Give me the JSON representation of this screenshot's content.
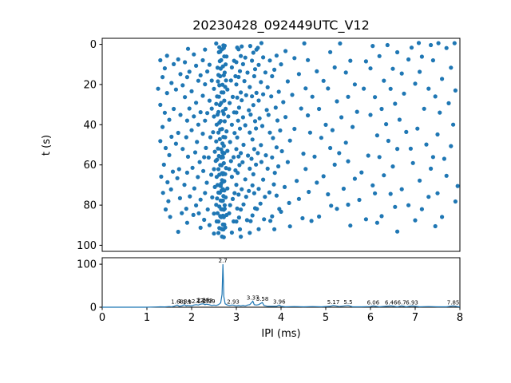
{
  "figure": {
    "background": "#ffffff",
    "accent": "#1f77b4"
  },
  "chart_data": [
    {
      "type": "scatter",
      "title": "20230428_092449UTC_V12",
      "xlabel": "",
      "ylabel": "t (s)",
      "xlim": [
        0,
        8
      ],
      "ylim": [
        103,
        -3
      ],
      "y_inverted": true,
      "grid": false,
      "legend": "none",
      "yticks": [
        0,
        20,
        40,
        60,
        80,
        100
      ],
      "marker_color": "#1f77b4",
      "rows_format": "[t_seconds, [ipi_ms, ...]]",
      "rows": [
        [
          0.5,
          [
            2.55,
            2.62,
            2.71,
            3.02,
            3.31,
            3.56,
            4.52,
            5.32,
            6.38,
            6.92,
            7.08,
            7.52,
            7.88
          ]
        ],
        [
          1.5,
          [
            2.68,
            2.74,
            3.12,
            3.48,
            6.05,
            7.35
          ]
        ],
        [
          3,
          [
            1.92,
            2.3,
            2.64,
            2.72,
            3.05,
            3.45,
            4.1,
            6.6,
            7.7
          ]
        ],
        [
          5,
          [
            1.45,
            2.05,
            2.61,
            2.78,
            3.1,
            3.38,
            3.9,
            5.1,
            6.2,
            7.15
          ]
        ],
        [
          7,
          [
            1.7,
            2.25,
            2.66,
            2.73,
            2.95,
            3.2,
            3.6,
            4.3,
            5.55,
            6.85
          ]
        ],
        [
          9,
          [
            1.3,
            1.85,
            2.4,
            2.63,
            2.76,
            3.0,
            3.35,
            3.75,
            4.6,
            5.9,
            7.4
          ]
        ],
        [
          11,
          [
            1.6,
            2.1,
            2.58,
            2.7,
            2.9,
            3.15,
            3.5,
            4.0,
            5.2,
            6.5,
            7.8
          ]
        ],
        [
          13,
          [
            1.4,
            1.95,
            2.35,
            2.65,
            2.74,
            3.08,
            3.42,
            3.85,
            4.8,
            6.0,
            7.1
          ]
        ],
        [
          15,
          [
            1.75,
            2.2,
            2.6,
            2.72,
            2.98,
            3.25,
            3.65,
            4.4,
            5.45,
            6.7
          ]
        ],
        [
          17,
          [
            1.35,
            1.9,
            2.45,
            2.64,
            2.77,
            3.05,
            3.4,
            3.8,
            4.95,
            6.3,
            7.6
          ]
        ],
        [
          19,
          [
            1.55,
            2.15,
            2.59,
            2.69,
            2.88,
            3.18,
            3.55,
            4.15,
            5.65,
            7.0
          ]
        ],
        [
          21,
          [
            1.25,
            1.8,
            2.3,
            2.62,
            2.75,
            3.0,
            3.3,
            3.7,
            4.55,
            5.85,
            7.3
          ]
        ],
        [
          23,
          [
            1.65,
            2.0,
            2.5,
            2.67,
            2.8,
            3.1,
            3.45,
            3.95,
            5.05,
            6.45,
            7.9
          ]
        ],
        [
          25,
          [
            1.45,
            2.25,
            2.61,
            2.71,
            2.92,
            3.22,
            3.6,
            4.25,
            5.5,
            6.75
          ]
        ],
        [
          27,
          [
            1.85,
            2.4,
            2.57,
            2.73,
            3.02,
            3.35,
            3.78,
            4.7,
            6.1,
            7.45
          ]
        ],
        [
          29,
          [
            1.3,
            2.1,
            2.55,
            2.66,
            2.85,
            3.12,
            3.5,
            4.05,
            5.25,
            6.55,
            7.75
          ]
        ],
        [
          31,
          [
            1.6,
            1.95,
            2.45,
            2.63,
            2.76,
            3.06,
            3.38,
            3.88,
            4.85,
            6.25
          ]
        ],
        [
          33,
          [
            1.4,
            2.2,
            2.6,
            2.7,
            2.95,
            3.28,
            3.68,
            4.45,
            5.7,
            7.2
          ]
        ],
        [
          35,
          [
            1.75,
            2.35,
            2.58,
            2.72,
            3.0,
            3.32,
            3.72,
            4.6,
            6.0,
            7.55
          ]
        ],
        [
          37,
          [
            1.5,
            2.05,
            2.5,
            2.65,
            2.82,
            3.15,
            3.52,
            4.1,
            5.35,
            6.65
          ]
        ],
        [
          39,
          [
            1.9,
            2.3,
            2.62,
            2.74,
            3.04,
            3.42,
            3.92,
            5.0,
            6.35,
            7.85
          ]
        ],
        [
          41,
          [
            1.35,
            2.15,
            2.56,
            2.68,
            2.9,
            3.2,
            3.58,
            4.3,
            5.6,
            7.05
          ]
        ],
        [
          43,
          [
            1.7,
            2.0,
            2.48,
            2.64,
            2.78,
            3.08,
            3.44,
            3.98,
            5.15,
            6.8
          ]
        ],
        [
          45,
          [
            1.55,
            2.25,
            2.6,
            2.71,
            2.96,
            3.3,
            3.75,
            4.65,
            6.15,
            7.5
          ]
        ],
        [
          47,
          [
            1.3,
            1.88,
            2.42,
            2.63,
            2.75,
            3.02,
            3.36,
            3.82,
            4.9,
            6.4
          ]
        ],
        [
          49,
          [
            1.65,
            2.12,
            2.55,
            2.69,
            2.86,
            3.16,
            3.55,
            4.2,
            5.45,
            7.25
          ]
        ],
        [
          51,
          [
            1.42,
            2.32,
            2.59,
            2.72,
            3.0,
            3.4,
            3.9,
            5.1,
            6.6,
            7.8
          ]
        ],
        [
          53,
          [
            1.8,
            2.08,
            2.52,
            2.66,
            2.69,
            2.8,
            3.1,
            3.48,
            4.02,
            5.3,
            6.9
          ]
        ],
        [
          55,
          [
            1.5,
            2.28,
            2.61,
            2.69,
            2.73,
            2.94,
            3.26,
            3.66,
            4.5,
            5.95,
            7.4
          ]
        ],
        [
          57,
          [
            1.92,
            2.38,
            2.57,
            2.7,
            3.05,
            3.34,
            3.8,
            4.75,
            6.2,
            7.65,
            2.66
          ]
        ],
        [
          59,
          [
            1.38,
            2.18,
            2.54,
            2.67,
            2.88,
            3.14,
            3.56,
            4.15,
            5.5,
            6.95,
            2.72
          ]
        ],
        [
          61,
          [
            1.72,
            2.02,
            2.5,
            2.64,
            2.77,
            3.07,
            3.44,
            3.94,
            5.2,
            6.5,
            2.84
          ]
        ],
        [
          63,
          [
            1.58,
            2.26,
            2.6,
            2.71,
            2.98,
            3.3,
            3.7,
            4.55,
            5.8,
            7.35,
            2.68
          ]
        ],
        [
          65,
          [
            1.32,
            1.9,
            2.44,
            2.62,
            2.75,
            3.03,
            3.38,
            3.86,
            4.95,
            6.3,
            7.7,
            2.7
          ]
        ],
        [
          67,
          [
            1.68,
            2.14,
            2.56,
            2.68,
            2.9,
            3.2,
            3.6,
            4.35,
            5.65,
            7.1,
            2.73
          ]
        ],
        [
          69,
          [
            1.46,
            2.34,
            2.58,
            2.72,
            3.0,
            3.36,
            3.84,
            4.8,
            6.05,
            2.66
          ]
        ],
        [
          71,
          [
            1.84,
            2.06,
            2.52,
            2.65,
            2.8,
            3.12,
            3.5,
            4.08,
            5.4,
            6.7,
            7.95,
            2.7
          ]
        ],
        [
          73,
          [
            1.54,
            2.3,
            2.6,
            2.73,
            2.96,
            3.28,
            3.74,
            4.62,
            6.1,
            7.5,
            2.67
          ]
        ],
        [
          75,
          [
            1.36,
            1.96,
            2.46,
            2.63,
            2.76,
            3.05,
            3.4,
            3.9,
            5.05,
            6.45,
            2.71
          ]
        ],
        [
          77,
          [
            1.74,
            2.2,
            2.57,
            2.7,
            2.92,
            3.22,
            3.64,
            4.4,
            5.75,
            7.3,
            2.65
          ]
        ],
        [
          79,
          [
            1.48,
            2.1,
            2.55,
            2.68,
            2.86,
            3.16,
            3.54,
            4.18,
            5.5,
            6.85,
            7.9,
            2.74
          ]
        ],
        [
          81,
          [
            1.88,
            2.36,
            2.62,
            2.74,
            3.02,
            3.42,
            3.96,
            5.12,
            6.55,
            2.68
          ]
        ],
        [
          83,
          [
            1.42,
            2.16,
            2.58,
            2.66,
            2.84,
            3.1,
            3.46,
            4.0,
            5.25,
            7.15,
            2.72
          ]
        ],
        [
          85,
          [
            1.78,
            2.04,
            2.5,
            2.64,
            2.78,
            3.06,
            3.36,
            3.8,
            4.85,
            6.25,
            7.6,
            2.7
          ]
        ],
        [
          87,
          [
            1.52,
            2.28,
            2.6,
            2.72,
            2.94,
            3.24,
            3.62,
            4.48,
            5.9,
            7.0,
            2.66
          ]
        ],
        [
          89,
          [
            1.9,
            2.4,
            2.56,
            2.7,
            3.0,
            3.32,
            3.76,
            4.68,
            6.15,
            2.73
          ]
        ],
        [
          91,
          [
            2.2,
            2.62,
            2.75,
            3.08,
            3.5,
            4.2,
            5.55,
            7.45,
            2.69
          ]
        ],
        [
          93,
          [
            1.7,
            2.5,
            2.67,
            2.9,
            3.3,
            3.85,
            6.6,
            2.71
          ]
        ],
        [
          95,
          [
            2.6,
            2.72,
            3.1,
            2.68
          ]
        ]
      ]
    },
    {
      "type": "line",
      "title": "",
      "xlabel": "IPI (ms)",
      "ylabel": "",
      "xlim": [
        0,
        8
      ],
      "ylim": [
        0,
        115
      ],
      "grid": false,
      "legend": "none",
      "yticks": [
        0,
        100
      ],
      "xticks": [
        0,
        1,
        2,
        3,
        4,
        5,
        6,
        7,
        8
      ],
      "line_color": "#1f77b4",
      "points": [
        [
          0,
          0
        ],
        [
          1,
          0
        ],
        [
          1.2,
          0.5
        ],
        [
          1.3,
          1
        ],
        [
          1.4,
          0.8
        ],
        [
          1.5,
          1.5
        ],
        [
          1.55,
          1
        ],
        [
          1.6,
          2
        ],
        [
          1.68,
          5
        ],
        [
          1.72,
          2
        ],
        [
          1.78,
          3
        ],
        [
          1.84,
          6
        ],
        [
          1.88,
          3
        ],
        [
          1.9,
          4
        ],
        [
          2.0,
          3
        ],
        [
          2.05,
          5
        ],
        [
          2.1,
          6
        ],
        [
          2.15,
          5
        ],
        [
          2.2,
          7
        ],
        [
          2.26,
          8
        ],
        [
          2.3,
          6
        ],
        [
          2.33,
          7
        ],
        [
          2.39,
          6
        ],
        [
          2.45,
          4
        ],
        [
          2.5,
          5
        ],
        [
          2.55,
          4
        ],
        [
          2.6,
          6
        ],
        [
          2.65,
          10
        ],
        [
          2.68,
          30
        ],
        [
          2.7,
          100
        ],
        [
          2.72,
          25
        ],
        [
          2.75,
          8
        ],
        [
          2.8,
          5
        ],
        [
          2.85,
          4
        ],
        [
          2.9,
          5
        ],
        [
          2.93,
          5
        ],
        [
          3.0,
          3
        ],
        [
          3.05,
          4
        ],
        [
          3.1,
          3
        ],
        [
          3.15,
          4
        ],
        [
          3.2,
          3
        ],
        [
          3.25,
          5
        ],
        [
          3.3,
          6
        ],
        [
          3.37,
          14
        ],
        [
          3.4,
          6
        ],
        [
          3.45,
          5
        ],
        [
          3.5,
          6
        ],
        [
          3.58,
          11
        ],
        [
          3.62,
          4
        ],
        [
          3.7,
          2
        ],
        [
          3.8,
          2
        ],
        [
          3.9,
          2
        ],
        [
          3.96,
          5
        ],
        [
          4.0,
          2
        ],
        [
          4.1,
          1
        ],
        [
          4.3,
          1.5
        ],
        [
          4.5,
          1
        ],
        [
          4.7,
          1.5
        ],
        [
          4.9,
          1
        ],
        [
          5.1,
          2
        ],
        [
          5.17,
          4
        ],
        [
          5.3,
          1.5
        ],
        [
          5.5,
          4
        ],
        [
          5.6,
          1
        ],
        [
          5.8,
          1
        ],
        [
          6.0,
          1.5
        ],
        [
          6.06,
          3
        ],
        [
          6.2,
          1
        ],
        [
          6.46,
          3
        ],
        [
          6.6,
          1
        ],
        [
          6.7,
          3
        ],
        [
          6.8,
          1
        ],
        [
          6.93,
          3
        ],
        [
          7.1,
          1
        ],
        [
          7.3,
          1.5
        ],
        [
          7.5,
          1
        ],
        [
          7.7,
          1
        ],
        [
          7.85,
          3
        ],
        [
          8,
          0.5
        ]
      ],
      "annotations": [
        {
          "label": "1.68",
          "x": 1.68,
          "y": 5
        },
        {
          "label": "1.84",
          "x": 1.84,
          "y": 6
        },
        {
          "label": "1.9",
          "x": 1.9,
          "y": 4
        },
        {
          "label": "2.1",
          "x": 2.1,
          "y": 6
        },
        {
          "label": "2.2",
          "x": 2.2,
          "y": 7
        },
        {
          "label": "2.26",
          "x": 2.26,
          "y": 8
        },
        {
          "label": "2.33",
          "x": 2.33,
          "y": 7
        },
        {
          "label": "2.39",
          "x": 2.39,
          "y": 6
        },
        {
          "label": "2.7",
          "x": 2.7,
          "y": 100
        },
        {
          "label": "2.93",
          "x": 2.93,
          "y": 5
        },
        {
          "label": "3.37",
          "x": 3.37,
          "y": 14
        },
        {
          "label": "3.58",
          "x": 3.58,
          "y": 11
        },
        {
          "label": "3.96",
          "x": 3.96,
          "y": 5
        },
        {
          "label": "5.17",
          "x": 5.17,
          "y": 4
        },
        {
          "label": "5.5",
          "x": 5.5,
          "y": 4
        },
        {
          "label": "6.06",
          "x": 6.06,
          "y": 3
        },
        {
          "label": "6.46",
          "x": 6.46,
          "y": 3
        },
        {
          "label": "6.7",
          "x": 6.7,
          "y": 3
        },
        {
          "label": "6.93",
          "x": 6.93,
          "y": 3
        },
        {
          "label": "7.85",
          "x": 7.85,
          "y": 3
        }
      ]
    }
  ]
}
